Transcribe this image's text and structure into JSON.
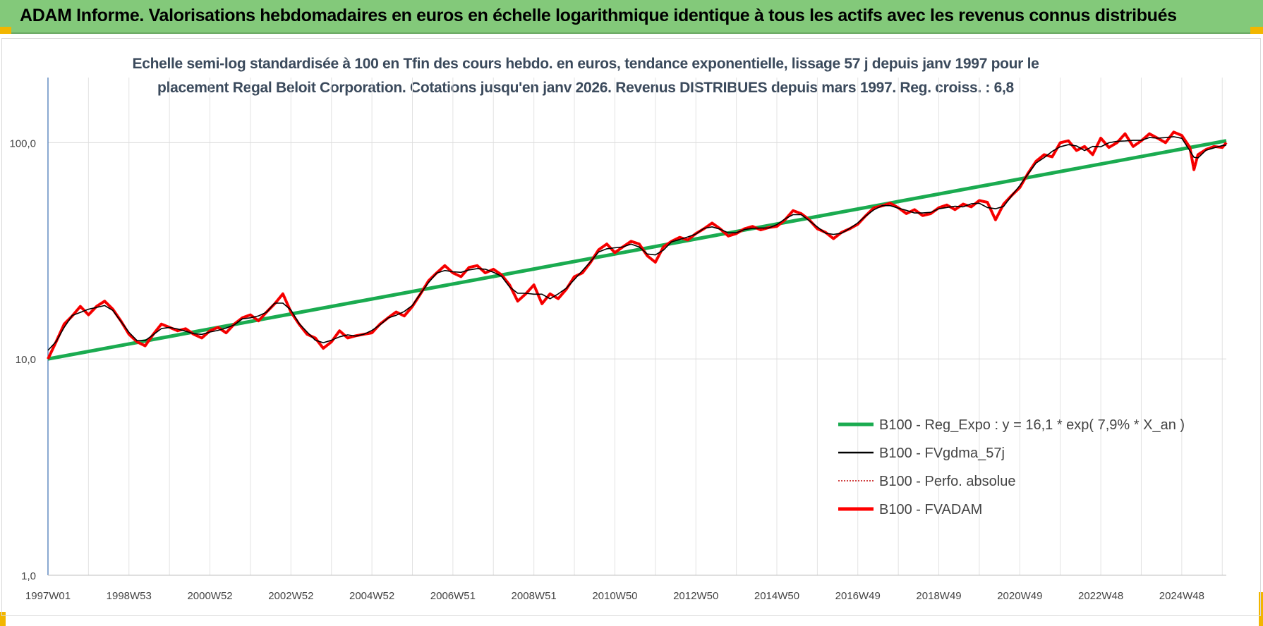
{
  "header": {
    "title": "ADAM Informe. Valorisations hebdomadaires en euros en échelle logarithmique identique à tous les actifs avec les revenus connus distribués",
    "bar_color": "#83c97a"
  },
  "chart_data": {
    "type": "line",
    "title_lines": [
      "Echelle semi-log standardisée à 100 en Tfin des cours hebdo. en euros, tendance exponentielle, lissage 57 j depuis janv 1997 pour le",
      "placement Regal Beloit Corporation. Cotations jusqu'en janv 2026. Revenus DISTRIBUES depuis mars 1997. Reg. croiss. : 6,8"
    ],
    "y_scale": "log",
    "ylim": [
      1,
      200
    ],
    "y_ticks": [
      {
        "value": 100,
        "label": "100,0"
      },
      {
        "value": 10,
        "label": "10,0"
      },
      {
        "value": 1,
        "label": "1,0"
      }
    ],
    "xlim": [
      1997.0,
      2026.1
    ],
    "x_ticks": [
      {
        "x": 1997.0,
        "label": "1997W01"
      },
      {
        "x": 1999.0,
        "label": "1998W53"
      },
      {
        "x": 2001.0,
        "label": "2000W52"
      },
      {
        "x": 2003.0,
        "label": "2002W52"
      },
      {
        "x": 2005.0,
        "label": "2004W52"
      },
      {
        "x": 2007.0,
        "label": "2006W51"
      },
      {
        "x": 2009.0,
        "label": "2008W51"
      },
      {
        "x": 2011.0,
        "label": "2010W50"
      },
      {
        "x": 2013.0,
        "label": "2012W50"
      },
      {
        "x": 2015.0,
        "label": "2014W50"
      },
      {
        "x": 2017.0,
        "label": "2016W49"
      },
      {
        "x": 2019.0,
        "label": "2018W49"
      },
      {
        "x": 2021.0,
        "label": "2020W49"
      },
      {
        "x": 2023.0,
        "label": "2022W48"
      },
      {
        "x": 2025.0,
        "label": "2024W48"
      }
    ],
    "grid": true,
    "legend_position": "bottom-right",
    "series": [
      {
        "name": "B100 - Reg_Expo : y = 16,1 * exp( 7,9% *  X_an )",
        "color": "#1aab50",
        "style": "solid-thick",
        "points": [
          [
            1997.0,
            10.0
          ],
          [
            2026.1,
            102.0
          ]
        ]
      },
      {
        "name": "B100 - FVgdma_57j",
        "color": "#000000",
        "style": "solid"
      },
      {
        "name": "B100 - Perfo. absolue",
        "color": "#c00000",
        "style": "dotted"
      },
      {
        "name": "B100 - FVADAM",
        "color": "#ff0000",
        "style": "solid-thick",
        "points": [
          [
            1997.0,
            10.0
          ],
          [
            1997.2,
            12.0
          ],
          [
            1997.4,
            14.5
          ],
          [
            1997.6,
            15.8
          ],
          [
            1997.8,
            17.5
          ],
          [
            1998.0,
            16.0
          ],
          [
            1998.2,
            17.5
          ],
          [
            1998.4,
            18.5
          ],
          [
            1998.6,
            17.0
          ],
          [
            1998.8,
            15.0
          ],
          [
            1999.0,
            13.0
          ],
          [
            1999.2,
            12.0
          ],
          [
            1999.4,
            11.5
          ],
          [
            1999.6,
            13.0
          ],
          [
            1999.8,
            14.5
          ],
          [
            2000.0,
            14.0
          ],
          [
            2000.2,
            13.5
          ],
          [
            2000.4,
            13.8
          ],
          [
            2000.6,
            13.0
          ],
          [
            2000.8,
            12.5
          ],
          [
            2001.0,
            13.5
          ],
          [
            2001.2,
            14.0
          ],
          [
            2001.4,
            13.2
          ],
          [
            2001.6,
            14.5
          ],
          [
            2001.8,
            15.5
          ],
          [
            2002.0,
            16.0
          ],
          [
            2002.2,
            15.0
          ],
          [
            2002.4,
            16.5
          ],
          [
            2002.6,
            18.0
          ],
          [
            2002.8,
            20.0
          ],
          [
            2003.0,
            16.5
          ],
          [
            2003.2,
            14.5
          ],
          [
            2003.4,
            13.0
          ],
          [
            2003.6,
            12.5
          ],
          [
            2003.8,
            11.2
          ],
          [
            2004.0,
            12.0
          ],
          [
            2004.2,
            13.5
          ],
          [
            2004.4,
            12.5
          ],
          [
            2004.6,
            12.8
          ],
          [
            2004.8,
            13.0
          ],
          [
            2005.0,
            13.2
          ],
          [
            2005.2,
            14.5
          ],
          [
            2005.4,
            15.5
          ],
          [
            2005.6,
            16.5
          ],
          [
            2005.8,
            15.8
          ],
          [
            2006.0,
            17.5
          ],
          [
            2006.2,
            20.0
          ],
          [
            2006.4,
            23.0
          ],
          [
            2006.6,
            25.0
          ],
          [
            2006.8,
            27.0
          ],
          [
            2007.0,
            25.0
          ],
          [
            2007.2,
            24.0
          ],
          [
            2007.4,
            26.5
          ],
          [
            2007.6,
            27.0
          ],
          [
            2007.8,
            25.0
          ],
          [
            2008.0,
            26.0
          ],
          [
            2008.2,
            24.5
          ],
          [
            2008.4,
            22.0
          ],
          [
            2008.6,
            18.5
          ],
          [
            2008.8,
            20.0
          ],
          [
            2009.0,
            22.0
          ],
          [
            2009.2,
            18.0
          ],
          [
            2009.4,
            20.0
          ],
          [
            2009.6,
            19.0
          ],
          [
            2009.8,
            21.0
          ],
          [
            2010.0,
            24.0
          ],
          [
            2010.2,
            25.0
          ],
          [
            2010.4,
            28.0
          ],
          [
            2010.6,
            32.0
          ],
          [
            2010.8,
            34.0
          ],
          [
            2011.0,
            31.0
          ],
          [
            2011.2,
            33.0
          ],
          [
            2011.4,
            35.0
          ],
          [
            2011.6,
            34.0
          ],
          [
            2011.8,
            30.0
          ],
          [
            2012.0,
            28.0
          ],
          [
            2012.2,
            33.0
          ],
          [
            2012.4,
            35.0
          ],
          [
            2012.6,
            36.5
          ],
          [
            2012.8,
            35.5
          ],
          [
            2013.0,
            38.0
          ],
          [
            2013.2,
            40.0
          ],
          [
            2013.4,
            42.5
          ],
          [
            2013.6,
            40.0
          ],
          [
            2013.8,
            37.0
          ],
          [
            2014.0,
            38.0
          ],
          [
            2014.2,
            40.0
          ],
          [
            2014.4,
            41.0
          ],
          [
            2014.6,
            39.5
          ],
          [
            2014.8,
            40.5
          ],
          [
            2015.0,
            41.0
          ],
          [
            2015.2,
            44.0
          ],
          [
            2015.4,
            48.5
          ],
          [
            2015.6,
            47.0
          ],
          [
            2015.8,
            44.0
          ],
          [
            2016.0,
            40.0
          ],
          [
            2016.2,
            38.5
          ],
          [
            2016.4,
            36.0
          ],
          [
            2016.6,
            38.5
          ],
          [
            2016.8,
            40.0
          ],
          [
            2017.0,
            42.0
          ],
          [
            2017.2,
            46.0
          ],
          [
            2017.4,
            50.0
          ],
          [
            2017.6,
            51.0
          ],
          [
            2017.8,
            52.5
          ],
          [
            2018.0,
            50.0
          ],
          [
            2018.2,
            47.0
          ],
          [
            2018.4,
            49.0
          ],
          [
            2018.6,
            46.0
          ],
          [
            2018.8,
            47.0
          ],
          [
            2019.0,
            50.0
          ],
          [
            2019.2,
            51.5
          ],
          [
            2019.4,
            49.0
          ],
          [
            2019.6,
            52.0
          ],
          [
            2019.8,
            50.5
          ],
          [
            2020.0,
            54.0
          ],
          [
            2020.2,
            53.0
          ],
          [
            2020.4,
            44.0
          ],
          [
            2020.6,
            52.0
          ],
          [
            2020.8,
            57.0
          ],
          [
            2021.0,
            62.0
          ],
          [
            2021.2,
            72.0
          ],
          [
            2021.4,
            82.0
          ],
          [
            2021.6,
            88.0
          ],
          [
            2021.8,
            86.0
          ],
          [
            2022.0,
            100.0
          ],
          [
            2022.2,
            102.0
          ],
          [
            2022.4,
            92.0
          ],
          [
            2022.6,
            96.0
          ],
          [
            2022.8,
            88.0
          ],
          [
            2023.0,
            105.0
          ],
          [
            2023.2,
            95.0
          ],
          [
            2023.4,
            100.0
          ],
          [
            2023.6,
            110.0
          ],
          [
            2023.8,
            96.0
          ],
          [
            2024.0,
            102.0
          ],
          [
            2024.2,
            110.0
          ],
          [
            2024.4,
            105.0
          ],
          [
            2024.6,
            100.0
          ],
          [
            2024.8,
            112.0
          ],
          [
            2025.0,
            108.0
          ],
          [
            2025.2,
            95.0
          ],
          [
            2025.3,
            75.0
          ],
          [
            2025.4,
            88.0
          ],
          [
            2025.6,
            93.0
          ],
          [
            2025.8,
            96.0
          ],
          [
            2026.0,
            95.0
          ],
          [
            2026.1,
            100.0
          ]
        ]
      }
    ]
  }
}
